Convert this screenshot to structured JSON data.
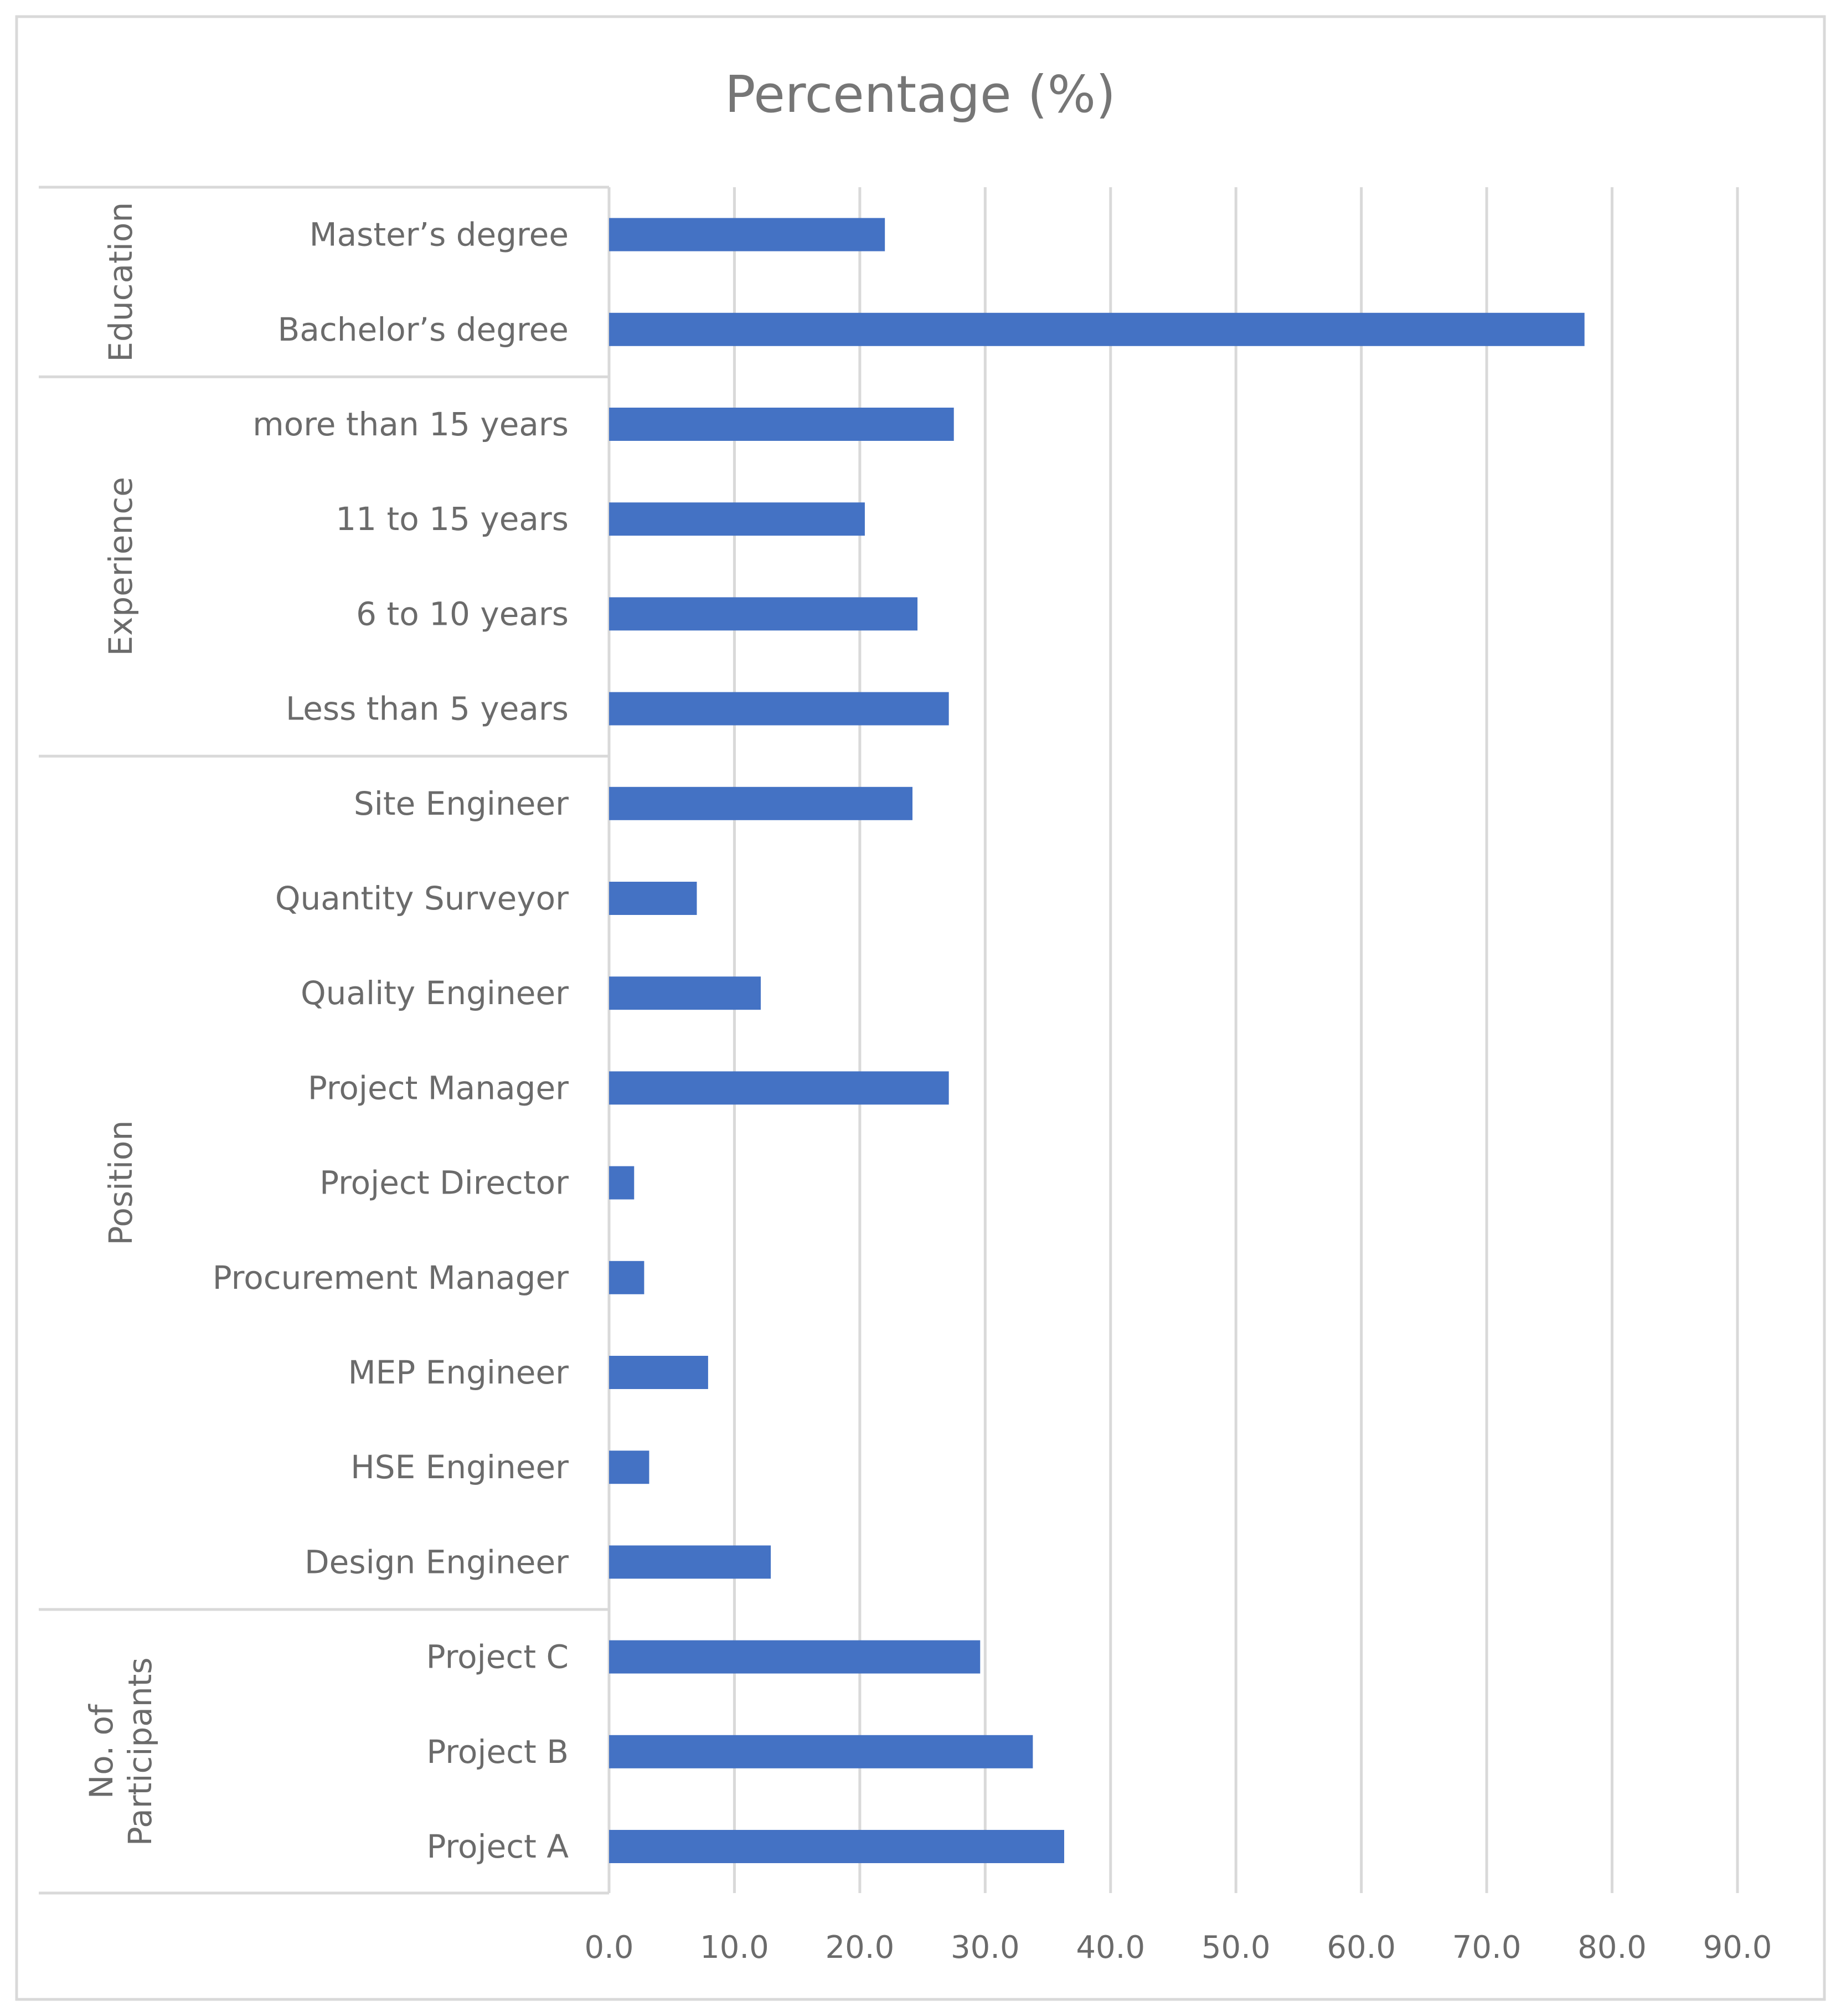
{
  "chart_data": {
    "type": "bar",
    "orientation": "horizontal",
    "title": "Percentage (%)",
    "xlabel": "",
    "ylabel": "",
    "xlim": [
      0,
      90
    ],
    "x_ticks": [
      "0.0",
      "10.0",
      "20.0",
      "30.0",
      "40.0",
      "50.0",
      "60.0",
      "70.0",
      "80.0",
      "90.0"
    ],
    "grid": true,
    "legend": "none",
    "bar_color": "#4472c4",
    "groups": [
      {
        "name": "Education",
        "categories": [
          "Master’s degree",
          "Bachelor’s degree"
        ],
        "values": [
          22.0,
          77.8
        ]
      },
      {
        "name": "Experience",
        "categories": [
          "more than 15 years",
          "11 to 15 years",
          "6 to 10 years",
          "Less than 5 years"
        ],
        "values": [
          27.5,
          20.4,
          24.6,
          27.1
        ]
      },
      {
        "name": "Position",
        "categories": [
          "Site Engineer",
          "Quantity Surveyor",
          "Quality Engineer",
          "Project Manager",
          "Project Director",
          "Procurement Manager",
          "MEP Engineer",
          "HSE Engineer",
          "Design Engineer"
        ],
        "values": [
          24.2,
          7.0,
          12.1,
          27.1,
          2.0,
          2.8,
          7.9,
          3.2,
          12.9
        ]
      },
      {
        "name": "No. of Participants",
        "name_lines": [
          "No. of",
          "Participants"
        ],
        "categories": [
          "Project C",
          "Project B",
          "Project A"
        ],
        "values": [
          29.6,
          33.8,
          36.3
        ]
      }
    ]
  }
}
